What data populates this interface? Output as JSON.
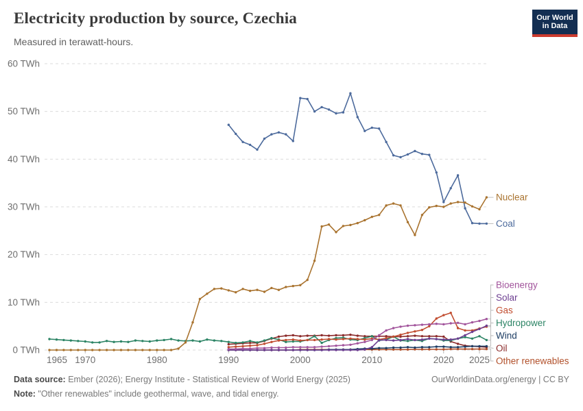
{
  "header": {
    "title": "Electricity production by source, Czechia",
    "subtitle": "Measured in terawatt-hours.",
    "logo_line1": "Our World",
    "logo_line2": "in Data",
    "logo_bg": "#132E52",
    "logo_stripe": "#CC3B2F"
  },
  "footer": {
    "source_label": "Data source:",
    "source_text": " Ember (2026); Energy Institute - Statistical Review of World Energy (2025)",
    "note_label": "Note:",
    "note_text": " \"Other renewables\" include geothermal, wave, and tidal energy.",
    "link": "OurWorldinData.org/energy | CC BY"
  },
  "chart_data": {
    "type": "line",
    "title": "Electricity production by source, Czechia",
    "unit": "TWh",
    "x_ticks": [
      1965,
      1970,
      1980,
      1990,
      2000,
      2010,
      2020,
      2025
    ],
    "y_ticks": [
      0,
      10,
      20,
      30,
      40,
      50,
      60
    ],
    "y_tick_suffix": " TWh",
    "xlim": [
      1965,
      2026
    ],
    "ylim": [
      0,
      60
    ],
    "grid": "dashed-horizontal",
    "legend_position": "right-end-labels",
    "axis_text_color": "#6e6e6e",
    "grid_color": "#dbdbdb",
    "series": [
      {
        "name": "Nuclear",
        "color": "#A9732F",
        "start_year": 1965,
        "values": [
          0,
          0,
          0,
          0,
          0,
          0,
          0,
          0,
          0,
          0,
          0,
          0,
          0,
          0,
          0,
          0,
          0,
          0,
          0.3,
          1.6,
          5.8,
          10.7,
          11.8,
          12.8,
          12.9,
          12.5,
          12.1,
          12.8,
          12.4,
          12.6,
          12.2,
          13.0,
          12.6,
          13.2,
          13.4,
          13.6,
          14.7,
          18.7,
          25.9,
          26.3,
          24.7,
          26.0,
          26.2,
          26.6,
          27.2,
          27.9,
          28.3,
          30.3,
          30.7,
          30.3,
          26.8,
          24.1,
          28.3,
          29.9,
          30.2,
          30.0,
          30.7,
          31.0,
          30.9,
          30.1,
          29.5,
          32.0
        ]
      },
      {
        "name": "Coal",
        "color": "#4C6A9C",
        "start_year": 1990,
        "values": [
          47.2,
          45.3,
          43.6,
          43.0,
          42.0,
          44.3,
          45.2,
          45.6,
          45.2,
          43.8,
          52.8,
          52.6,
          50.0,
          50.9,
          50.4,
          49.6,
          49.8,
          53.8,
          48.8,
          45.9,
          46.6,
          46.4,
          43.6,
          40.8,
          40.4,
          41.0,
          41.7,
          41.1,
          40.9,
          37.2,
          31.0,
          33.9,
          36.6,
          29.7,
          26.6,
          26.5,
          26.5
        ]
      },
      {
        "name": "Bioenergy",
        "color": "#A2559C",
        "start_year": 1990,
        "values": [
          0.2,
          0.2,
          0.3,
          0.3,
          0.4,
          0.4,
          0.5,
          0.5,
          0.5,
          0.6,
          0.6,
          0.6,
          0.6,
          0.7,
          0.8,
          0.9,
          1.0,
          1.1,
          1.4,
          1.7,
          2.1,
          3.1,
          4.1,
          4.6,
          4.9,
          5.1,
          5.2,
          5.3,
          5.4,
          5.5,
          5.4,
          5.6,
          5.7,
          5.4,
          5.8,
          6.1,
          6.5
        ]
      },
      {
        "name": "Solar",
        "color": "#6D3E91",
        "start_year": 1990,
        "values": [
          0,
          0,
          0,
          0,
          0,
          0,
          0,
          0,
          0,
          0,
          0,
          0,
          0,
          0,
          0,
          0,
          0,
          0,
          0,
          0.1,
          0.6,
          2.1,
          2.1,
          2.0,
          2.1,
          2.3,
          2.1,
          2.2,
          2.4,
          2.3,
          2.2,
          2.2,
          2.4,
          3.1,
          3.8,
          4.4,
          5.1
        ]
      },
      {
        "name": "Gas",
        "color": "#C14D30",
        "start_year": 1990,
        "values": [
          0.6,
          0.7,
          0.8,
          0.9,
          1.0,
          1.3,
          1.7,
          2.0,
          2.1,
          2.2,
          2.0,
          2.1,
          2.1,
          2.2,
          2.3,
          2.2,
          2.3,
          2.4,
          2.3,
          2.2,
          2.4,
          2.2,
          2.5,
          2.8,
          3.2,
          3.6,
          3.9,
          4.2,
          5.0,
          6.6,
          7.3,
          7.8,
          4.6,
          4.1,
          4.1,
          4.5,
          4.9
        ]
      },
      {
        "name": "Hydropower",
        "color": "#2C8465",
        "start_year": 1965,
        "values": [
          2.3,
          2.2,
          2.1,
          2.0,
          1.9,
          1.8,
          1.6,
          1.6,
          1.9,
          1.7,
          1.8,
          1.7,
          2.0,
          1.9,
          1.8,
          2.0,
          2.1,
          2.3,
          2.0,
          1.9,
          2.0,
          1.8,
          2.2,
          2.0,
          1.9,
          1.7,
          1.5,
          1.6,
          1.9,
          1.6,
          2.0,
          2.5,
          2.2,
          1.7,
          1.8,
          1.8,
          2.1,
          2.9,
          1.5,
          2.1,
          2.5,
          2.6,
          2.2,
          2.1,
          2.5,
          2.9,
          2.0,
          2.2,
          2.8,
          2.0,
          1.9,
          2.1,
          1.9,
          2.4,
          2.3,
          2.0,
          2.0,
          2.4,
          2.7,
          2.4,
          2.9,
          2.1
        ]
      },
      {
        "name": "Wind",
        "color": "#1D3D63",
        "start_year": 1990,
        "values": [
          0,
          0,
          0,
          0,
          0,
          0,
          0,
          0,
          0,
          0,
          0,
          0,
          0,
          0,
          0.1,
          0.1,
          0.1,
          0.1,
          0.2,
          0.3,
          0.3,
          0.4,
          0.4,
          0.5,
          0.5,
          0.6,
          0.5,
          0.6,
          0.6,
          0.7,
          0.7,
          0.6,
          0.6,
          0.7,
          0.8,
          0.8,
          0.8
        ]
      },
      {
        "name": "Oil",
        "color": "#8B2A2A",
        "start_year": 1990,
        "values": [
          1.2,
          1.3,
          1.4,
          1.5,
          1.5,
          1.9,
          2.4,
          2.8,
          3.0,
          3.1,
          2.9,
          3.0,
          3.0,
          3.1,
          3.0,
          3.1,
          3.1,
          3.2,
          3.0,
          2.9,
          2.9,
          2.9,
          2.9,
          2.8,
          2.8,
          2.9,
          3.0,
          2.9,
          2.9,
          2.9,
          2.8,
          1.8,
          1.3,
          0.9,
          0.8,
          0.7,
          0.6
        ]
      },
      {
        "name": "Other renewables",
        "color": "#B14F29",
        "start_year": 1990,
        "values": [
          0,
          0,
          0,
          0,
          0,
          0,
          0,
          0,
          0,
          0,
          0.1,
          0.1,
          0.1,
          0.1,
          0.1,
          0.1,
          0.1,
          0.1,
          0.1,
          0.1,
          0.1,
          0.1,
          0.1,
          0.1,
          0.1,
          0.1,
          0.15,
          0.15,
          0.15,
          0.15,
          0.15,
          0.2,
          0.2,
          0.2,
          0.2,
          0.2,
          0.2
        ]
      }
    ]
  }
}
